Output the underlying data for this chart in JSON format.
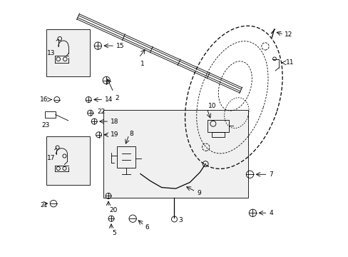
{
  "bg_color": "#ffffff",
  "line_color": "#000000",
  "box_fill": "#f0f0f0",
  "parts_labels": [
    1,
    2,
    3,
    4,
    5,
    6,
    7,
    8,
    9,
    10,
    11,
    12,
    13,
    14,
    15,
    16,
    17,
    18,
    19,
    20,
    21,
    22,
    23
  ]
}
